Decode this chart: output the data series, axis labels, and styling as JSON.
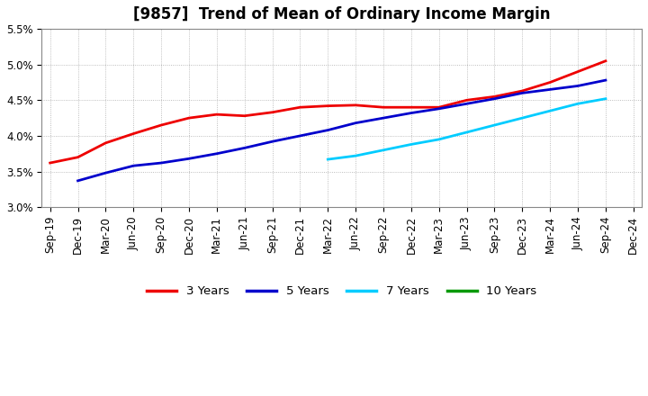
{
  "title": "[9857]  Trend of Mean of Ordinary Income Margin",
  "ylim": [
    0.03,
    0.055
  ],
  "yticks": [
    0.03,
    0.035,
    0.04,
    0.045,
    0.05,
    0.055
  ],
  "ytick_labels": [
    "3.0%",
    "3.5%",
    "4.0%",
    "4.5%",
    "5.0%",
    "5.5%"
  ],
  "x_labels": [
    "Sep-19",
    "Dec-19",
    "Mar-20",
    "Jun-20",
    "Sep-20",
    "Dec-20",
    "Mar-21",
    "Jun-21",
    "Sep-21",
    "Dec-21",
    "Mar-22",
    "Jun-22",
    "Sep-22",
    "Dec-22",
    "Mar-23",
    "Jun-23",
    "Sep-23",
    "Dec-23",
    "Mar-24",
    "Jun-24",
    "Sep-24",
    "Dec-24"
  ],
  "series": [
    {
      "name": "3 Years",
      "color": "#ee0000",
      "linewidth": 2.0,
      "values": [
        0.0362,
        0.037,
        0.039,
        0.0403,
        0.0415,
        0.0425,
        0.043,
        0.0428,
        0.0433,
        0.044,
        0.0442,
        0.0443,
        0.044,
        0.044,
        0.044,
        0.045,
        0.0455,
        0.0463,
        0.0475,
        0.049,
        0.0505,
        null
      ]
    },
    {
      "name": "5 Years",
      "color": "#0000cc",
      "linewidth": 2.0,
      "values": [
        null,
        0.0337,
        0.0348,
        0.0358,
        0.0362,
        0.0368,
        0.0375,
        0.0383,
        0.0392,
        0.04,
        0.0408,
        0.0418,
        0.0425,
        0.0432,
        0.0438,
        0.0445,
        0.0452,
        0.046,
        0.0465,
        0.047,
        0.0478,
        null
      ]
    },
    {
      "name": "7 Years",
      "color": "#00ccff",
      "linewidth": 2.0,
      "values": [
        null,
        null,
        null,
        null,
        null,
        null,
        null,
        null,
        null,
        null,
        0.0367,
        0.0372,
        0.038,
        0.0388,
        0.0395,
        0.0405,
        0.0415,
        0.0425,
        0.0435,
        0.0445,
        0.0452,
        null
      ]
    },
    {
      "name": "10 Years",
      "color": "#009900",
      "linewidth": 2.0,
      "values": [
        null,
        null,
        null,
        null,
        null,
        null,
        null,
        null,
        null,
        null,
        null,
        null,
        null,
        null,
        null,
        null,
        null,
        null,
        null,
        null,
        null,
        null
      ]
    }
  ],
  "legend_colors": [
    "#ee0000",
    "#0000cc",
    "#00ccff",
    "#009900"
  ],
  "legend_labels": [
    "3 Years",
    "5 Years",
    "7 Years",
    "10 Years"
  ],
  "background_color": "#ffffff",
  "grid_color": "#aaaaaa",
  "plot_bg_color": "#ffffff",
  "title_fontsize": 12,
  "tick_fontsize": 8.5
}
